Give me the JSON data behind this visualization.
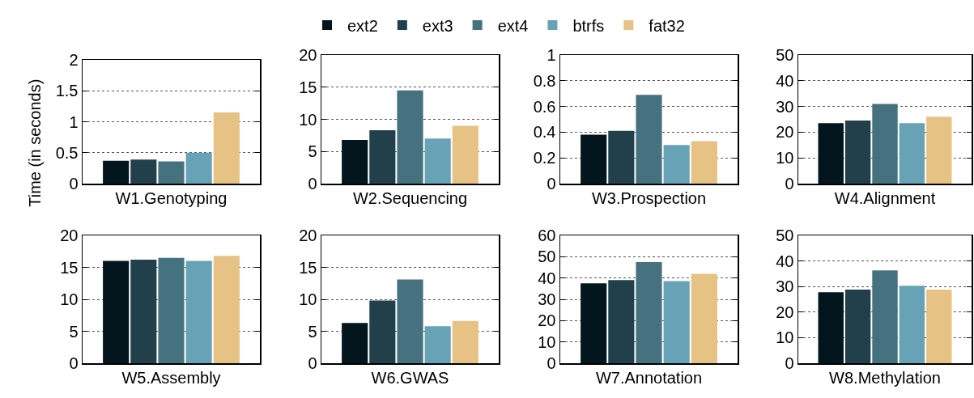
{
  "chart_data": [
    {
      "type": "bar",
      "xlabel": "W1.Genotyping",
      "ylabel": "Time (in seconds)",
      "legend": "top",
      "grid": "y",
      "categories": [
        null
      ],
      "ylim": [
        0,
        2
      ],
      "yticks": [
        0,
        0.5,
        1,
        1.5,
        2
      ],
      "series": [
        {
          "name": "ext2",
          "color": "#03161d",
          "values": [
            0.37
          ]
        },
        {
          "name": "ext3",
          "color": "#223f4c",
          "values": [
            0.39
          ]
        },
        {
          "name": "ext4",
          "color": "#46717f",
          "values": [
            0.36
          ]
        },
        {
          "name": "btrfs",
          "color": "#67a2b6",
          "values": [
            0.5
          ]
        },
        {
          "name": "fat32",
          "color": "#e6c285",
          "values": [
            1.15
          ]
        }
      ]
    },
    {
      "type": "bar",
      "xlabel": "W2.Sequencing",
      "grid": "y",
      "categories": [
        null
      ],
      "ylim": [
        0,
        20
      ],
      "yticks": [
        0,
        5,
        10,
        15,
        20
      ],
      "series": [
        {
          "color": "#03161d",
          "values": [
            6.8
          ]
        },
        {
          "color": "#223f4c",
          "values": [
            8.3
          ]
        },
        {
          "color": "#46717f",
          "values": [
            14.5
          ]
        },
        {
          "color": "#67a2b6",
          "values": [
            7.0
          ]
        },
        {
          "color": "#e6c285",
          "values": [
            9.0
          ]
        }
      ]
    },
    {
      "type": "bar",
      "xlabel": "W3.Prospection",
      "grid": "y",
      "categories": [
        null
      ],
      "ylim": [
        0,
        1
      ],
      "yticks": [
        0,
        0.2,
        0.4,
        0.6,
        0.8,
        1
      ],
      "series": [
        {
          "color": "#03161d",
          "values": [
            0.38
          ]
        },
        {
          "color": "#223f4c",
          "values": [
            0.41
          ]
        },
        {
          "color": "#46717f",
          "values": [
            0.69
          ]
        },
        {
          "color": "#67a2b6",
          "values": [
            0.3
          ]
        },
        {
          "color": "#e6c285",
          "values": [
            0.33
          ]
        }
      ]
    },
    {
      "type": "bar",
      "xlabel": "W4.Alignment",
      "grid": "y",
      "categories": [
        null
      ],
      "ylim": [
        0,
        50
      ],
      "yticks": [
        0,
        10,
        20,
        30,
        40,
        50
      ],
      "series": [
        {
          "color": "#03161d",
          "values": [
            23.5
          ]
        },
        {
          "color": "#223f4c",
          "values": [
            24.5
          ]
        },
        {
          "color": "#46717f",
          "values": [
            31
          ]
        },
        {
          "color": "#67a2b6",
          "values": [
            23.5
          ]
        },
        {
          "color": "#e6c285",
          "values": [
            26
          ]
        }
      ]
    },
    {
      "type": "bar",
      "xlabel": "W5.Assembly",
      "grid": "y",
      "categories": [
        null
      ],
      "ylim": [
        0,
        20
      ],
      "yticks": [
        0,
        5,
        10,
        15,
        20
      ],
      "series": [
        {
          "color": "#03161d",
          "values": [
            16.0
          ]
        },
        {
          "color": "#223f4c",
          "values": [
            16.2
          ]
        },
        {
          "color": "#46717f",
          "values": [
            16.5
          ]
        },
        {
          "color": "#67a2b6",
          "values": [
            16.0
          ]
        },
        {
          "color": "#e6c285",
          "values": [
            16.8
          ]
        }
      ]
    },
    {
      "type": "bar",
      "xlabel": "W6.GWAS",
      "grid": "y",
      "categories": [
        null
      ],
      "ylim": [
        0,
        20
      ],
      "yticks": [
        0,
        5,
        10,
        15,
        20
      ],
      "series": [
        {
          "color": "#03161d",
          "values": [
            6.3
          ]
        },
        {
          "color": "#223f4c",
          "values": [
            9.8
          ]
        },
        {
          "color": "#46717f",
          "values": [
            13.1
          ]
        },
        {
          "color": "#67a2b6",
          "values": [
            5.8
          ]
        },
        {
          "color": "#e6c285",
          "values": [
            6.6
          ]
        }
      ]
    },
    {
      "type": "bar",
      "xlabel": "W7.Annotation",
      "grid": "y",
      "categories": [
        null
      ],
      "ylim": [
        0,
        60
      ],
      "yticks": [
        0,
        10,
        20,
        30,
        40,
        50,
        60
      ],
      "series": [
        {
          "color": "#03161d",
          "values": [
            37.5
          ]
        },
        {
          "color": "#223f4c",
          "values": [
            39
          ]
        },
        {
          "color": "#46717f",
          "values": [
            47.5
          ]
        },
        {
          "color": "#67a2b6",
          "values": [
            38.5
          ]
        },
        {
          "color": "#e6c285",
          "values": [
            42
          ]
        }
      ]
    },
    {
      "type": "bar",
      "xlabel": "W8.Methylation",
      "grid": "y",
      "categories": [
        null
      ],
      "ylim": [
        0,
        50
      ],
      "yticks": [
        0,
        10,
        20,
        30,
        40,
        50
      ],
      "series": [
        {
          "color": "#03161d",
          "values": [
            27.8
          ]
        },
        {
          "color": "#223f4c",
          "values": [
            28.8
          ]
        },
        {
          "color": "#46717f",
          "values": [
            36.3
          ]
        },
        {
          "color": "#67a2b6",
          "values": [
            30.3
          ]
        },
        {
          "color": "#e6c285",
          "values": [
            28.8
          ]
        }
      ]
    }
  ]
}
